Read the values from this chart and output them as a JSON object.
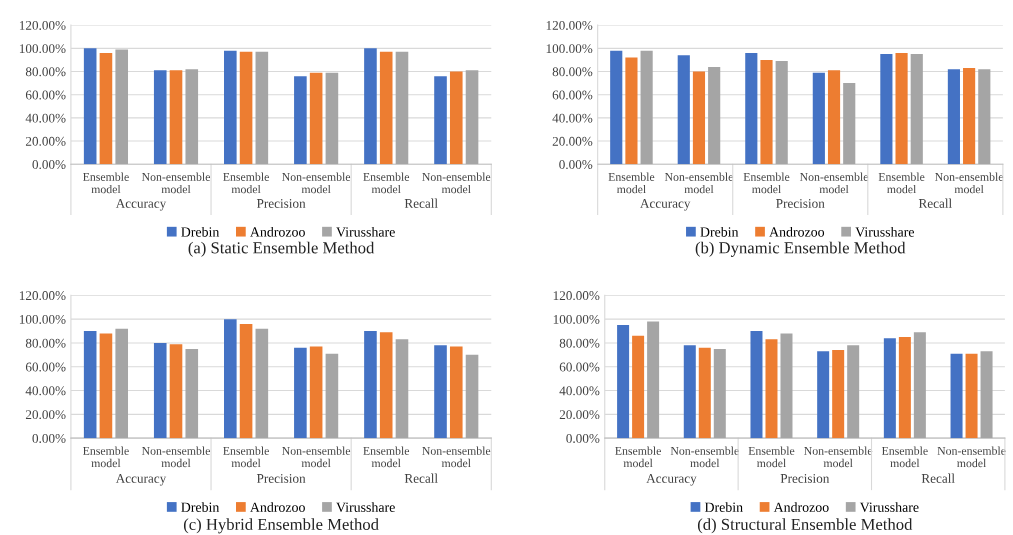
{
  "chart_data": [
    {
      "type": "bar",
      "title": "(a) Static Ensemble Method",
      "categories": [
        "Ensemble\nmodel",
        "Non-ensemble\nmodel",
        "Ensemble\nmodel",
        "Non-ensemble\nmodel",
        "Ensemble\nmodel",
        "Non-ensemble\nmodel"
      ],
      "annotations": [
        "Accuracy",
        "Precision",
        "Recall"
      ],
      "series": [
        {
          "name": "Drebin",
          "color": "#4472c4",
          "values": [
            100,
            81,
            98,
            76,
            100,
            76
          ]
        },
        {
          "name": "Androzoo",
          "color": "#ed7d31",
          "values": [
            96,
            81,
            97,
            79,
            97,
            80
          ]
        },
        {
          "name": "Virusshare",
          "color": "#a5a5a5",
          "values": [
            99,
            82,
            97,
            79,
            97,
            81
          ]
        }
      ],
      "ylim": [
        0,
        120
      ],
      "yticks": [
        {
          "value": 0,
          "label": "0.00%"
        },
        {
          "value": 20,
          "label": "20.00%"
        },
        {
          "value": 40,
          "label": "40.00%"
        },
        {
          "value": 60,
          "label": "60.00%"
        },
        {
          "value": 80,
          "label": "80.00%"
        },
        {
          "value": 100,
          "label": "100.00%"
        },
        {
          "value": 120,
          "label": "120.00%"
        }
      ],
      "grid": "y",
      "legend": "bottom"
    },
    {
      "type": "bar",
      "title": "(b) Dynamic Ensemble Method",
      "categories": [
        "Ensemble\nmodel",
        "Non-ensemble\nmodel",
        "Ensemble\nmodel",
        "Non-ensemble\nmodel",
        "Ensemble\nmodel",
        "Non-ensemble\nmodel"
      ],
      "annotations": [
        "Accuracy",
        "Precision",
        "Recall"
      ],
      "series": [
        {
          "name": "Drebin",
          "color": "#4472c4",
          "values": [
            98,
            94,
            96,
            79,
            95,
            82
          ]
        },
        {
          "name": "Androzoo",
          "color": "#ed7d31",
          "values": [
            92,
            80,
            90,
            81,
            96,
            83
          ]
        },
        {
          "name": "Virusshare",
          "color": "#a5a5a5",
          "values": [
            98,
            84,
            89,
            70,
            95,
            82
          ]
        }
      ],
      "ylim": [
        0,
        120
      ],
      "yticks": [
        {
          "value": 0,
          "label": "0.00%"
        },
        {
          "value": 20,
          "label": "20.00%"
        },
        {
          "value": 40,
          "label": "40.00%"
        },
        {
          "value": 60,
          "label": "60.00%"
        },
        {
          "value": 80,
          "label": "80.00%"
        },
        {
          "value": 100,
          "label": "100.00%"
        },
        {
          "value": 120,
          "label": "120.00%"
        }
      ],
      "grid": "y",
      "legend": "bottom"
    },
    {
      "type": "bar",
      "title": "(c) Hybrid Ensemble Method",
      "categories": [
        "Ensemble\nmodel",
        "Non-ensemble\nmodel",
        "Ensemble\nmodel",
        "Non-ensemble\nmodel",
        "Ensemble\nmodel",
        "Non-ensemble\nmodel"
      ],
      "annotations": [
        "Accuracy",
        "Precision",
        "Recall"
      ],
      "series": [
        {
          "name": "Drebin",
          "color": "#4472c4",
          "values": [
            90,
            80,
            100,
            76,
            90,
            78
          ]
        },
        {
          "name": "Androzoo",
          "color": "#ed7d31",
          "values": [
            88,
            79,
            96,
            77,
            89,
            77
          ]
        },
        {
          "name": "Virusshare",
          "color": "#a5a5a5",
          "values": [
            92,
            75,
            92,
            71,
            83,
            70
          ]
        }
      ],
      "ylim": [
        0,
        120
      ],
      "yticks": [
        {
          "value": 0,
          "label": "0.00%"
        },
        {
          "value": 20,
          "label": "20.00%"
        },
        {
          "value": 40,
          "label": "40.00%"
        },
        {
          "value": 60,
          "label": "60.00%"
        },
        {
          "value": 80,
          "label": "80.00%"
        },
        {
          "value": 100,
          "label": "100.00%"
        },
        {
          "value": 120,
          "label": "120.00%"
        }
      ],
      "grid": "y",
      "legend": "bottom"
    },
    {
      "type": "bar",
      "title": "(d) Structural Ensemble Method",
      "categories": [
        "Ensemble\nmodel",
        "Non-ensemble\nmodel",
        "Ensemble\nmodel",
        "Non-ensemble\nmodel",
        "Ensemble\nmodel",
        "Non-ensemble\nmodel"
      ],
      "annotations": [
        "Accuracy",
        "Precision",
        "Recall"
      ],
      "series": [
        {
          "name": "Drebin",
          "color": "#4472c4",
          "values": [
            95,
            78,
            90,
            73,
            84,
            71
          ]
        },
        {
          "name": "Androzoo",
          "color": "#ed7d31",
          "values": [
            86,
            76,
            83,
            74,
            85,
            71
          ]
        },
        {
          "name": "Virusshare",
          "color": "#a5a5a5",
          "values": [
            98,
            75,
            88,
            78,
            89,
            73
          ]
        }
      ],
      "ylim": [
        0,
        120
      ],
      "yticks": [
        {
          "value": 0,
          "label": "0.00%"
        },
        {
          "value": 20,
          "label": "20.00%"
        },
        {
          "value": 40,
          "label": "40.00%"
        },
        {
          "value": 60,
          "label": "60.00%"
        },
        {
          "value": 80,
          "label": "80.00%"
        },
        {
          "value": 100,
          "label": "100.00%"
        },
        {
          "value": 120,
          "label": "120.00%"
        }
      ],
      "grid": "y",
      "legend": "bottom"
    }
  ]
}
